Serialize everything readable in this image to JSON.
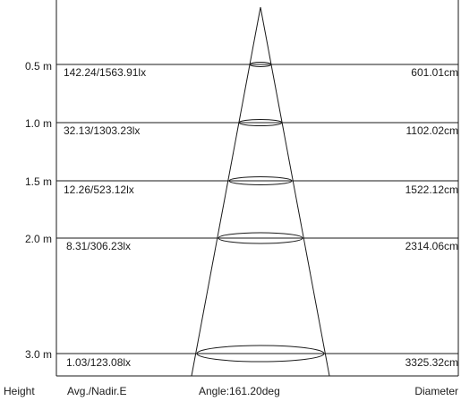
{
  "footer": {
    "height_label": "Height",
    "avg_label": "Avg./Nadir.E",
    "angle_label": "Angle:161.20deg",
    "diameter_label": "Diameter"
  },
  "rows": [
    {
      "height": "0.5 m",
      "illuminance": "142.24/1563.91lx",
      "diameter": "601.01cm"
    },
    {
      "height": "1.0 m",
      "illuminance": "32.13/1303.23lx",
      "diameter": "1102.02cm"
    },
    {
      "height": "1.5 m",
      "illuminance": "12.26/523.12lx",
      "diameter": "1522.12cm"
    },
    {
      "height": "2.0 m",
      "illuminance": "8.31/306.23lx",
      "diameter": "2314.06cm"
    },
    {
      "height": "3.0 m",
      "illuminance": "1.03/123.08lx",
      "diameter": "3325.32cm"
    }
  ]
}
